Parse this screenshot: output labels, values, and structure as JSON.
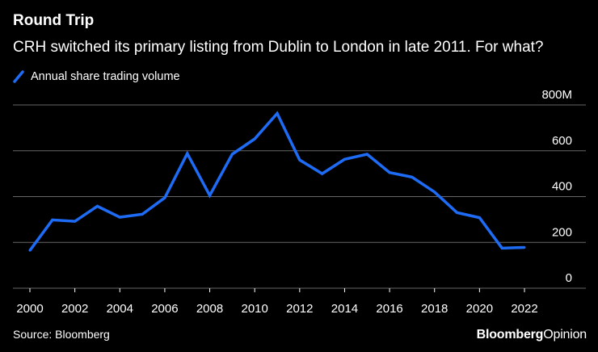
{
  "header": {
    "title": "Round Trip",
    "subtitle": "CRH switched its primary listing from Dublin to London in late 2011. For what?"
  },
  "footer": {
    "source": "Source: Bloomberg",
    "brand_bold": "Bloomberg",
    "brand_light": "Opinion"
  },
  "colors": {
    "background": "#000000",
    "series": "#1e6cf5",
    "grid": "#666666",
    "text": "#ffffff"
  },
  "chart_data": {
    "type": "line",
    "title": "Round Trip",
    "subtitle": "CRH switched its primary listing from Dublin to London in late 2011. For what?",
    "xlabel": "",
    "ylabel": "",
    "legend_position": "top-left",
    "grid": true,
    "x": [
      2000,
      2001,
      2002,
      2003,
      2004,
      2005,
      2006,
      2007,
      2008,
      2009,
      2010,
      2011,
      2012,
      2013,
      2014,
      2015,
      2016,
      2017,
      2018,
      2019,
      2020,
      2021,
      2022
    ],
    "series": [
      {
        "name": "Annual share trading volume",
        "values": [
          165,
          298,
          292,
          358,
          310,
          323,
          395,
          588,
          405,
          585,
          652,
          763,
          560,
          500,
          563,
          585,
          505,
          485,
          420,
          330,
          308,
          175,
          178
        ]
      }
    ],
    "xlim": [
      2000,
      2022
    ],
    "ylim": [
      0,
      800
    ],
    "x_ticks": [
      2000,
      2002,
      2004,
      2006,
      2008,
      2010,
      2012,
      2014,
      2016,
      2018,
      2020,
      2022
    ],
    "x_tick_labels": [
      "2000",
      "2002",
      "2004",
      "2006",
      "2008",
      "2010",
      "2012",
      "2014",
      "2016",
      "2018",
      "2020",
      "2022"
    ],
    "y_ticks": [
      0,
      200,
      400,
      600,
      800
    ],
    "y_tick_labels": [
      "0",
      "200",
      "400",
      "600",
      "800M"
    ]
  }
}
